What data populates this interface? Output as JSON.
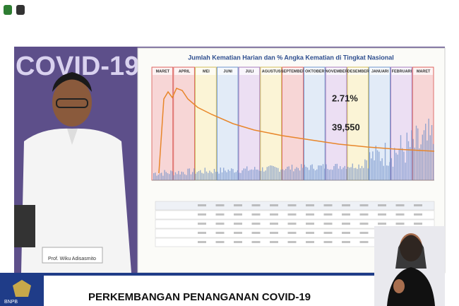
{
  "background_text": "COVID-19",
  "slide": {
    "title": "Jumlah Kematian Harian dan % Angka Kematian di Tingkat Nasional",
    "months": [
      "MARET",
      "APRIL",
      "MEI",
      "JUNI",
      "JULI",
      "AGUSTUS",
      "SEPTEMBER",
      "OKTOBER",
      "NOVEMBER",
      "DESEMBER",
      "JANUARI",
      "FEBRUARI",
      "MARET"
    ],
    "rate": "2.71%",
    "total": "39,550"
  },
  "speaker": {
    "name": "Prof. Wiku Adisasmito"
  },
  "logo": {
    "text": "BNPB"
  },
  "banner": {
    "text": "PERKEMBANGAN PENANGANAN COVID-19"
  }
}
